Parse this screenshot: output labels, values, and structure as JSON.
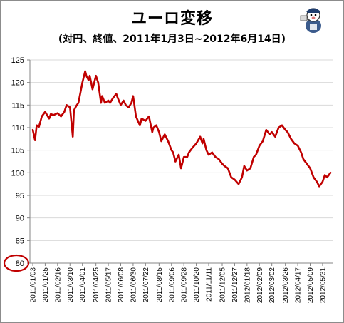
{
  "title": "ユーロ変移",
  "subtitle": "(対円、終値、2011年1月3日~2012年6月14日)",
  "colors": {
    "line": "#c00000",
    "highlight": "#c00000",
    "grid": "#d9d9d9",
    "axis": "#868686"
  },
  "chart_data": {
    "type": "line",
    "title": "ユーロ変移",
    "subtitle": "(対円、終値、2011年1月3日~2012年6月14日)",
    "xlabel": "",
    "ylabel": "",
    "ylim": [
      80,
      125
    ],
    "yticks": [
      80,
      85,
      90,
      95,
      100,
      105,
      110,
      115,
      120,
      125
    ],
    "highlighted_tick": 80,
    "grid": "horizontal",
    "legend": "none",
    "xticks": [
      "2011/01/03",
      "2011/01/25",
      "2011/02/16",
      "2011/03/10",
      "2011/04/01",
      "2011/04/25",
      "2011/05/17",
      "2011/06/08",
      "2011/06/30",
      "2011/07/22",
      "2011/08/15",
      "2011/09/06",
      "2011/09/28",
      "2011/10/20",
      "2011/11/11",
      "2011/12/05",
      "2011/12/27",
      "2012/01/18",
      "2012/02/09",
      "2012/03/02",
      "2012/03/26",
      "2012/04/17",
      "2012/05/09",
      "2012/05/31"
    ],
    "series": [
      {
        "x": [
          "2011/01/03",
          "2011/01/07",
          "2011/01/10",
          "2011/01/14",
          "2011/01/19",
          "2011/01/25",
          "2011/02/01",
          "2011/02/04",
          "2011/02/09",
          "2011/02/16",
          "2011/02/22",
          "2011/02/28",
          "2011/03/04",
          "2011/03/10",
          "2011/03/15",
          "2011/03/17",
          "2011/03/21",
          "2011/03/25",
          "2011/04/01",
          "2011/04/06",
          "2011/04/08",
          "2011/04/12",
          "2011/04/14",
          "2011/04/19",
          "2011/04/25",
          "2011/04/29",
          "2011/05/04",
          "2011/05/06",
          "2011/05/11",
          "2011/05/17",
          "2011/05/20",
          "2011/05/25",
          "2011/05/31",
          "2011/06/03",
          "2011/06/08",
          "2011/06/13",
          "2011/06/17",
          "2011/06/22",
          "2011/06/27",
          "2011/06/30",
          "2011/07/05",
          "2011/07/12",
          "2011/07/15",
          "2011/07/22",
          "2011/07/28",
          "2011/08/03",
          "2011/08/05",
          "2011/08/10",
          "2011/08/15",
          "2011/08/19",
          "2011/08/25",
          "2011/08/31",
          "2011/09/06",
          "2011/09/09",
          "2011/09/13",
          "2011/09/19",
          "2011/09/23",
          "2011/09/28",
          "2011/10/04",
          "2011/10/07",
          "2011/10/13",
          "2011/10/20",
          "2011/10/27",
          "2011/10/31",
          "2011/11/02",
          "2011/11/07",
          "2011/11/11",
          "2011/11/17",
          "2011/11/23",
          "2011/11/29",
          "2011/12/05",
          "2011/12/09",
          "2011/12/15",
          "2011/12/21",
          "2011/12/27",
          "2012/01/03",
          "2012/01/09",
          "2012/01/13",
          "2012/01/18",
          "2012/01/24",
          "2012/01/30",
          "2012/02/03",
          "2012/02/09",
          "2012/02/15",
          "2012/02/21",
          "2012/02/27",
          "2012/03/02",
          "2012/03/08",
          "2012/03/14",
          "2012/03/20",
          "2012/03/26",
          "2012/03/30",
          "2012/04/05",
          "2012/04/11",
          "2012/04/17",
          "2012/04/23",
          "2012/04/27",
          "2012/05/03",
          "2012/05/09",
          "2012/05/15",
          "2012/05/21",
          "2012/05/25",
          "2012/05/31",
          "2012/06/04",
          "2012/06/08",
          "2012/06/14"
        ],
        "values": [
          109.5,
          107.2,
          110.5,
          110.2,
          112.5,
          113.5,
          112.0,
          113.0,
          112.8,
          113.2,
          112.5,
          113.5,
          115.0,
          114.5,
          108.0,
          113.8,
          114.8,
          115.5,
          120.0,
          122.5,
          121.5,
          120.5,
          121.5,
          118.5,
          121.5,
          120.0,
          115.5,
          117.0,
          115.5,
          116.0,
          115.5,
          116.5,
          117.5,
          116.5,
          115.0,
          116.0,
          115.0,
          114.5,
          115.5,
          117.0,
          112.5,
          110.5,
          112.0,
          111.5,
          112.5,
          109.0,
          110.0,
          110.5,
          109.0,
          107.0,
          108.5,
          107.0,
          105.0,
          104.5,
          102.5,
          104.0,
          101.0,
          103.5,
          103.5,
          104.5,
          105.5,
          106.5,
          108.0,
          106.5,
          107.5,
          105.0,
          104.0,
          104.5,
          103.5,
          103.0,
          102.0,
          101.5,
          101.0,
          99.0,
          98.5,
          97.5,
          99.0,
          101.5,
          100.5,
          101.0,
          103.5,
          104.0,
          106.0,
          107.0,
          109.5,
          108.5,
          109.0,
          108.0,
          110.0,
          110.5,
          109.5,
          109.0,
          107.5,
          106.5,
          106.0,
          104.5,
          103.0,
          102.0,
          101.0,
          99.0,
          98.0,
          97.0,
          98.0,
          99.5,
          99.0,
          100.0
        ]
      }
    ]
  }
}
